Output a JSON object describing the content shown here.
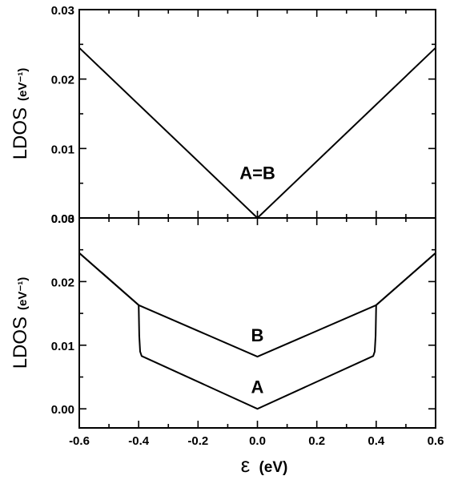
{
  "chart_data": [
    {
      "type": "line",
      "panel": "top",
      "ylabel": "LDOS",
      "ylabel_unit": "(eV⁻¹)",
      "xlim": [
        -0.6,
        0.6
      ],
      "ylim": [
        0.0,
        0.03
      ],
      "yticks": [
        "0.00",
        "0.01",
        "0.02",
        "0.03"
      ],
      "grid": false,
      "annotations": [
        {
          "text": "A=B",
          "x": 0.0,
          "y": 0.0056
        }
      ],
      "series": [
        {
          "x": [
            -0.6,
            0.0,
            0.6
          ],
          "y": [
            0.0245,
            0.0,
            0.0245
          ]
        }
      ]
    },
    {
      "type": "line",
      "panel": "bottom",
      "ylabel": "LDOS",
      "ylabel_unit": "(eV⁻¹)",
      "xlabel_symbol": "ε",
      "xlabel_unit": "(eV)",
      "xlim": [
        -0.6,
        0.6
      ],
      "ylim": [
        -0.003,
        0.03
      ],
      "xticks": [
        "-0.6",
        "-0.4",
        "-0.2",
        "0.0",
        "0.2",
        "0.4",
        "0.6"
      ],
      "yticks": [
        "0.00",
        "0.01",
        "0.02",
        "0.03"
      ],
      "grid": false,
      "annotations": [
        {
          "text": "B",
          "x": 0.0,
          "y": 0.0106
        },
        {
          "text": "A",
          "x": 0.0,
          "y": 0.0025
        }
      ],
      "series": [
        {
          "name": "B",
          "x": [
            -0.6,
            -0.4,
            0.0,
            0.4,
            0.6
          ],
          "y": [
            0.0245,
            0.0163,
            0.0082,
            0.0163,
            0.0245
          ]
        },
        {
          "name": "A",
          "x": [
            -0.6,
            -0.4,
            -0.398,
            -0.395,
            -0.39,
            0.0,
            0.39,
            0.395,
            0.398,
            0.4,
            0.6
          ],
          "y": [
            0.0245,
            0.0163,
            0.0115,
            0.009,
            0.0083,
            0.0,
            0.0083,
            0.009,
            0.0115,
            0.0163,
            0.0245
          ]
        }
      ]
    }
  ]
}
